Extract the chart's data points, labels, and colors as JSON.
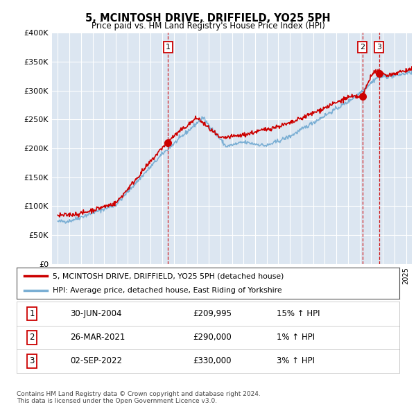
{
  "title": "5, MCINTOSH DRIVE, DRIFFIELD, YO25 5PH",
  "subtitle": "Price paid vs. HM Land Registry's House Price Index (HPI)",
  "background_color": "#dce6f1",
  "plot_bg_color": "#dce6f1",
  "yticks": [
    0,
    50000,
    100000,
    150000,
    200000,
    250000,
    300000,
    350000,
    400000
  ],
  "ytick_labels": [
    "£0",
    "£50K",
    "£100K",
    "£150K",
    "£200K",
    "£250K",
    "£300K",
    "£350K",
    "£400K"
  ],
  "sale_color": "#cc0000",
  "hpi_color": "#7bafd4",
  "marker_color": "#cc0000",
  "vline_color": "#cc0000",
  "grid_color": "#ffffff",
  "sale_year_floats": [
    2004.5,
    2021.24,
    2022.67
  ],
  "sale_prices": [
    209995,
    290000,
    330000
  ],
  "sale_labels": [
    "1",
    "2",
    "3"
  ],
  "legend_sale_label": "5, MCINTOSH DRIVE, DRIFFIELD, YO25 5PH (detached house)",
  "legend_hpi_label": "HPI: Average price, detached house, East Riding of Yorkshire",
  "table_entries": [
    {
      "num": "1",
      "date": "30-JUN-2004",
      "price": "£209,995",
      "hpi": "15% ↑ HPI"
    },
    {
      "num": "2",
      "date": "26-MAR-2021",
      "price": "£290,000",
      "hpi": "1% ↑ HPI"
    },
    {
      "num": "3",
      "date": "02-SEP-2022",
      "price": "£330,000",
      "hpi": "3% ↑ HPI"
    }
  ],
  "footer": "Contains HM Land Registry data © Crown copyright and database right 2024.\nThis data is licensed under the Open Government Licence v3.0.",
  "xmin": 1994.5,
  "xmax": 2025.5,
  "ymin": 0,
  "ymax": 400000
}
